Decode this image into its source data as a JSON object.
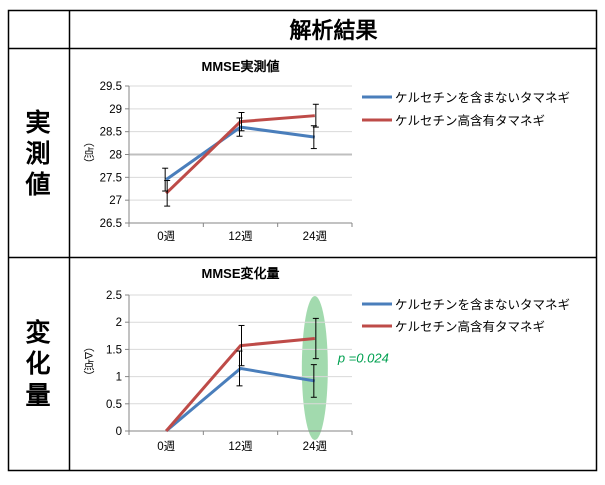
{
  "header": {
    "title": "解析結果"
  },
  "rows": [
    {
      "label_chars": [
        "実",
        "測",
        "値"
      ]
    },
    {
      "label_chars": [
        "変",
        "化",
        "量"
      ]
    }
  ],
  "colors": {
    "series1": "#4a7ebb",
    "series2": "#be4b48",
    "highlight": "#92d3a0",
    "pvalue": "#00a050"
  },
  "chart_data": [
    {
      "type": "line",
      "title": "MMSE実測値",
      "ylabel": "（点）",
      "categories": [
        "0週",
        "12週",
        "24週"
      ],
      "ylim": [
        26.5,
        29.5
      ],
      "yticks": [
        "26.5",
        "27",
        "27.5",
        "28",
        "28.5",
        "29",
        "29.5"
      ],
      "series": [
        {
          "name": "ケルセチンを含まないタマネギ",
          "values": [
            27.45,
            28.6,
            28.38
          ],
          "err": [
            0.25,
            0.2,
            0.25
          ]
        },
        {
          "name": "ケルセチン高含有タマネギ",
          "values": [
            27.15,
            28.72,
            28.85
          ],
          "err": [
            0.28,
            0.2,
            0.25
          ]
        }
      ],
      "legend": "right"
    },
    {
      "type": "line",
      "title": "MMSE変化量",
      "ylabel": "（Δ点）",
      "categories": [
        "0週",
        "12週",
        "24週"
      ],
      "ylim": [
        0,
        2.5
      ],
      "yticks": [
        "0",
        "0.5",
        "1",
        "1.5",
        "2",
        "2.5"
      ],
      "series": [
        {
          "name": "ケルセチンを含まないタマネギ",
          "values": [
            0,
            1.15,
            0.92
          ],
          "err": [
            0,
            0.32,
            0.3
          ]
        },
        {
          "name": "ケルセチン高含有タマネギ",
          "values": [
            0,
            1.57,
            1.7
          ],
          "err": [
            0,
            0.37,
            0.37
          ]
        }
      ],
      "legend": "right",
      "annotation": {
        "text": "p =0.024",
        "at_category": "24週"
      }
    }
  ]
}
